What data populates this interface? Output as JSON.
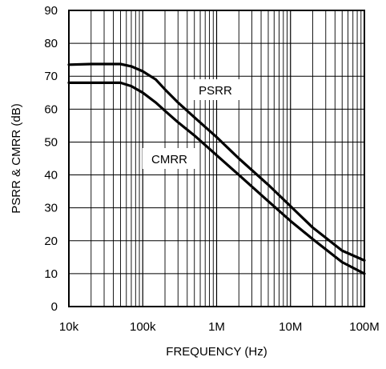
{
  "chart_data": {
    "type": "line",
    "x_scale": "log",
    "xlim": [
      10000,
      100000000
    ],
    "ylim": [
      0,
      90
    ],
    "grid": true,
    "xlabel": "FREQUENCY (Hz)",
    "ylabel": "PSRR & CMRR (dB)",
    "x_ticks": [
      {
        "value": 10000,
        "label": "10k"
      },
      {
        "value": 100000,
        "label": "100k"
      },
      {
        "value": 1000000,
        "label": "1M"
      },
      {
        "value": 10000000,
        "label": "10M"
      },
      {
        "value": 100000000,
        "label": "100M"
      }
    ],
    "y_ticks": [
      {
        "value": 0,
        "label": "0"
      },
      {
        "value": 10,
        "label": "10"
      },
      {
        "value": 20,
        "label": "20"
      },
      {
        "value": 30,
        "label": "30"
      },
      {
        "value": 40,
        "label": "40"
      },
      {
        "value": 50,
        "label": "50"
      },
      {
        "value": 60,
        "label": "60"
      },
      {
        "value": 70,
        "label": "70"
      },
      {
        "value": 80,
        "label": "80"
      },
      {
        "value": 90,
        "label": "90"
      }
    ],
    "series": [
      {
        "name": "PSRR",
        "x": [
          10000,
          20000,
          50000,
          70000,
          100000,
          150000,
          200000,
          300000,
          500000,
          1000000,
          2000000,
          5000000,
          10000000,
          20000000,
          50000000,
          100000000
        ],
        "y": [
          73.5,
          73.7,
          73.7,
          73,
          71.5,
          69,
          66,
          62,
          57.5,
          51.5,
          45,
          37,
          30.5,
          24,
          17,
          14
        ]
      },
      {
        "name": "CMRR",
        "x": [
          10000,
          20000,
          50000,
          70000,
          100000,
          150000,
          200000,
          300000,
          500000,
          1000000,
          2000000,
          5000000,
          10000000,
          20000000,
          50000000,
          100000000
        ],
        "y": [
          68,
          68,
          68,
          67,
          65,
          62,
          59.5,
          56,
          52,
          46,
          40,
          32,
          26,
          20.5,
          13.5,
          10
        ]
      }
    ]
  }
}
